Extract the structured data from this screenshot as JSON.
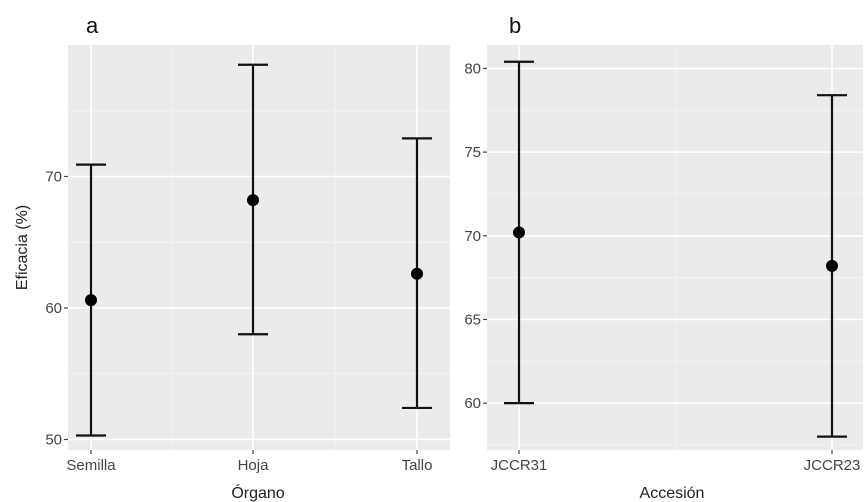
{
  "chart_data": [
    {
      "type": "scatter",
      "panel_label": "a",
      "xlabel": "Órgano",
      "ylabel": "Eficacia (%)",
      "categories": [
        "Semilla",
        "Hoja",
        "Tallo"
      ],
      "values": [
        60.6,
        68.2,
        62.6
      ],
      "lower": [
        50.3,
        58.0,
        52.4
      ],
      "upper": [
        70.9,
        78.5,
        72.9
      ],
      "ylim": [
        49.2,
        80.0
      ],
      "yticks": [
        50,
        60,
        70
      ],
      "grid": true,
      "background": "#ebebeb"
    },
    {
      "type": "scatter",
      "panel_label": "b",
      "xlabel": "Accesión",
      "ylabel": "",
      "categories": [
        "JCCR31",
        "JCCR23"
      ],
      "values": [
        70.2,
        68.2
      ],
      "lower": [
        60.0,
        58.0
      ],
      "upper": [
        80.4,
        78.4
      ],
      "ylim": [
        57.2,
        81.4
      ],
      "yticks": [
        60,
        65,
        70,
        75,
        80
      ],
      "grid": true,
      "background": "#ebebeb"
    }
  ]
}
